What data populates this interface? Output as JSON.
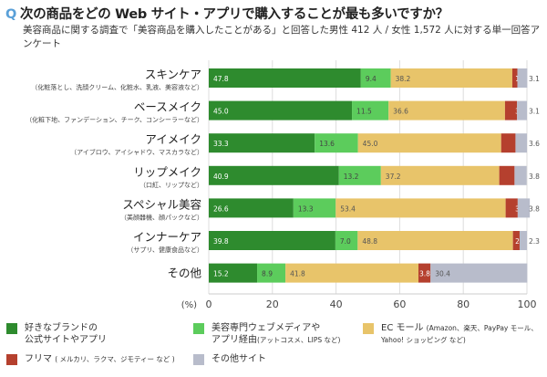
{
  "header": {
    "q_mark": "Q",
    "title": "次の商品をどの Web サイト・アプリで購入することが最も多いですか？",
    "subtitle": "美容商品に関する調査で「美容商品を購入したことがある」と回答した男性 412 人 / 女性 1,572 人に対する単一回答アンケート"
  },
  "chart_data": {
    "type": "bar",
    "orientation": "horizontal",
    "stacked": true,
    "categories": [
      "スキンケア",
      "ベースメイク",
      "アイメイク",
      "リップメイク",
      "スペシャル美容",
      "インナーケア",
      "その他"
    ],
    "category_notes": [
      "（化粧落とし、洗顔クリーム、化粧水、乳液、美容液など）",
      "（化粧下地、ファンデーション、チーク、コンシーラーなど）",
      "（アイブロウ、アイシャドウ、マスカラなど）",
      "（口紅、リップなど）",
      "（美顔器機、顔パックなど）",
      "（サプリ、健康食品など）",
      ""
    ],
    "series": [
      {
        "name": "好きなブランドの公式サイトやアプリ",
        "color": "#2e8b2e",
        "label_color": "#ffffff",
        "values": [
          47.8,
          45.0,
          33.3,
          40.9,
          26.6,
          39.8,
          15.2
        ]
      },
      {
        "name": "美容専門ウェブメディアやアプリ経由（アットコスメ、LIPS など）",
        "color": "#5ccc5c",
        "label_color": "#444444",
        "values": [
          9.4,
          11.5,
          13.6,
          13.2,
          13.3,
          7.0,
          8.9
        ]
      },
      {
        "name": "EC モール（Amazon、楽天、PayPay モール、Yahoo! ショッピング など）",
        "color": "#e8c46a",
        "label_color": "#555555",
        "values": [
          38.2,
          36.6,
          45.0,
          37.2,
          53.4,
          48.8,
          41.8
        ]
      },
      {
        "name": "フリマ（メルカリ、ラクマ、ジモティー など）",
        "color": "#b5402e",
        "label_color": "#ffffff",
        "values": [
          1.6,
          3.8,
          4.5,
          4.8,
          3.8,
          2.1,
          3.8
        ]
      },
      {
        "name": "その他サイト",
        "color": "#b8bccb",
        "label_color": "#555555",
        "values": [
          3.1,
          3.1,
          3.6,
          3.8,
          3.8,
          2.3,
          30.4
        ]
      }
    ],
    "xlim": [
      0,
      100
    ],
    "xticks": [
      "0",
      "20",
      "40",
      "60",
      "80",
      "100"
    ],
    "xlabel": "(%)",
    "grid": true,
    "legend_position": "bottom"
  },
  "legend": [
    {
      "line1": "好きなブランドの",
      "line2": "公式サイトやアプリ",
      "note": ""
    },
    {
      "line1": "美容専門ウェブメディアや",
      "line2": "アプリ経由",
      "note": "(アットコスメ、LIPS など)"
    },
    {
      "line1": "EC モール",
      "note": "(Amazon、楽天、PayPay モール、",
      "line2": "Yahoo! ショッピング など)"
    },
    {
      "line1": "フリマ",
      "note": "( メルカリ、ラクマ、ジモティー など )"
    },
    {
      "line1": "その他サイト"
    }
  ]
}
